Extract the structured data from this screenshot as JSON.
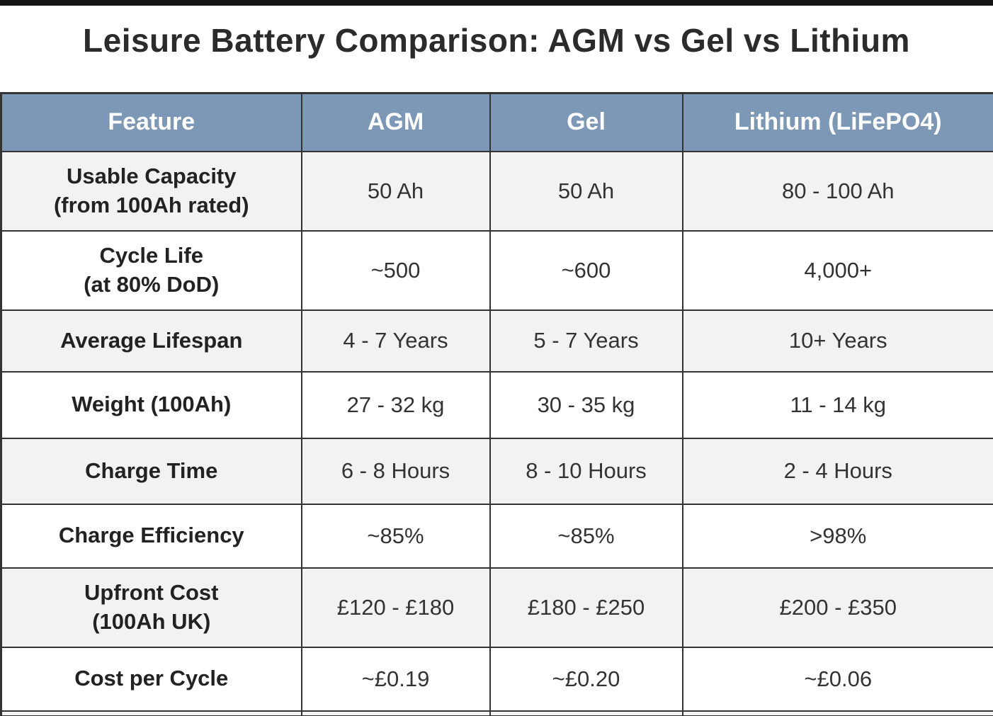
{
  "page": {
    "title": "Leisure Battery Comparison: AGM vs Gel vs Lithium"
  },
  "colors": {
    "header_bg": "#7d97b6",
    "header_text": "#ffffff",
    "row_alt_bg": "#f2f2f2",
    "row_bg": "#ffffff",
    "border": "#333333",
    "title_text": "#2b2b2b",
    "top_bar": "#141414"
  },
  "table": {
    "columns": [
      "Feature",
      "AGM",
      "Gel",
      "Lithium (LiFePO4)"
    ],
    "rows": [
      {
        "feature": "Usable Capacity",
        "feature_sub": "(from 100Ah rated)",
        "agm": "50 Ah",
        "gel": "50 Ah",
        "lithium": "80 - 100 Ah"
      },
      {
        "feature": "Cycle Life",
        "feature_sub": "(at 80% DoD)",
        "agm": "~500",
        "gel": "~600",
        "lithium": "4,000+"
      },
      {
        "feature": "Average Lifespan",
        "feature_sub": "",
        "agm": "4 - 7 Years",
        "gel": "5 - 7 Years",
        "lithium": "10+ Years"
      },
      {
        "feature": "Weight (100Ah)",
        "feature_sub": "",
        "agm": "27 - 32 kg",
        "gel": "30 - 35 kg",
        "lithium": "11 - 14 kg"
      },
      {
        "feature": "Charge Time",
        "feature_sub": "",
        "agm": "6 - 8 Hours",
        "gel": "8 - 10 Hours",
        "lithium": "2 - 4 Hours"
      },
      {
        "feature": "Charge Efficiency",
        "feature_sub": "",
        "agm": "~85%",
        "gel": "~85%",
        "lithium": ">98%"
      },
      {
        "feature": "Upfront Cost",
        "feature_sub": "(100Ah UK)",
        "agm": "£120 - £180",
        "gel": "£180 - £250",
        "lithium": "£200 - £350"
      },
      {
        "feature": "Cost per Cycle",
        "feature_sub": "",
        "agm": "~£0.19",
        "gel": "~£0.20",
        "lithium": "~£0.06"
      }
    ],
    "truncated_next_row": true
  },
  "chart_data": {
    "type": "table",
    "title": "Leisure Battery Comparison: AGM vs Gel vs Lithium",
    "columns": [
      "Feature",
      "AGM",
      "Gel",
      "Lithium (LiFePO4)"
    ],
    "rows": [
      [
        "Usable Capacity (from 100Ah rated)",
        "50 Ah",
        "50 Ah",
        "80 - 100 Ah"
      ],
      [
        "Cycle Life (at 80% DoD)",
        "~500",
        "~600",
        "4,000+"
      ],
      [
        "Average Lifespan",
        "4 - 7 Years",
        "5 - 7 Years",
        "10+ Years"
      ],
      [
        "Weight (100Ah)",
        "27 - 32 kg",
        "30 - 35 kg",
        "11 - 14 kg"
      ],
      [
        "Charge Time",
        "6 - 8 Hours",
        "8 - 10 Hours",
        "2 - 4 Hours"
      ],
      [
        "Charge Efficiency",
        "~85%",
        "~85%",
        ">98%"
      ],
      [
        "Upfront Cost (100Ah UK)",
        "£120 - £180",
        "£180 - £250",
        "£200 - £350"
      ],
      [
        "Cost per Cycle",
        "~£0.19",
        "~£0.20",
        "~£0.06"
      ]
    ]
  }
}
